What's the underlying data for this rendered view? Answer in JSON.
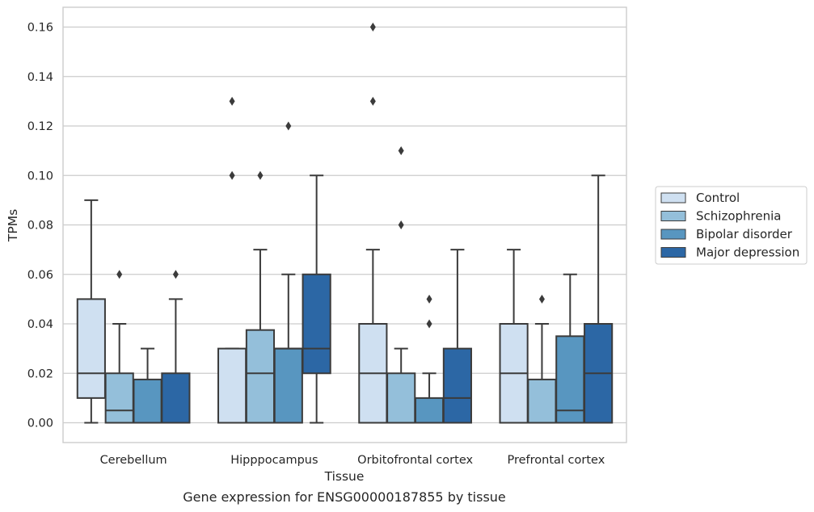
{
  "chart_data": {
    "type": "boxplot",
    "title": "",
    "caption": "Gene expression for ENSG00000187855 by tissue",
    "xlabel": "Tissue",
    "ylabel": "TPMs",
    "ylim": [
      -0.008,
      0.168
    ],
    "yticks": [
      0.0,
      0.02,
      0.04,
      0.06,
      0.08,
      0.1,
      0.12,
      0.14,
      0.16
    ],
    "ytick_labels": [
      "0.00",
      "0.02",
      "0.04",
      "0.06",
      "0.08",
      "0.10",
      "0.12",
      "0.14",
      "0.16"
    ],
    "grid": "horizontal",
    "legend_position": "right",
    "categories": [
      "Cerebellum",
      "Hipppocampus",
      "Orbitofrontal cortex",
      "Prefrontal cortex"
    ],
    "series": [
      {
        "name": "Control",
        "color": "#cfe0f1",
        "boxes": [
          {
            "whislo": 0.0,
            "q1": 0.01,
            "med": 0.02,
            "q3": 0.05,
            "whishi": 0.09,
            "fliers": []
          },
          {
            "whislo": 0.0,
            "q1": 0.0,
            "med": 0.0,
            "q3": 0.03,
            "whishi": 0.03,
            "fliers": [
              0.1,
              0.13
            ]
          },
          {
            "whislo": 0.0,
            "q1": 0.0,
            "med": 0.02,
            "q3": 0.04,
            "whishi": 0.07,
            "fliers": [
              0.13,
              0.16
            ]
          },
          {
            "whislo": 0.0,
            "q1": 0.0,
            "med": 0.02,
            "q3": 0.04,
            "whishi": 0.07,
            "fliers": []
          }
        ]
      },
      {
        "name": "Schizophrenia",
        "color": "#94bfda",
        "boxes": [
          {
            "whislo": 0.0,
            "q1": 0.0,
            "med": 0.005,
            "q3": 0.02,
            "whishi": 0.04,
            "fliers": [
              0.06
            ]
          },
          {
            "whislo": 0.0,
            "q1": 0.0,
            "med": 0.02,
            "q3": 0.0375,
            "whishi": 0.07,
            "fliers": [
              0.1
            ]
          },
          {
            "whislo": 0.0,
            "q1": 0.0,
            "med": 0.0,
            "q3": 0.02,
            "whishi": 0.03,
            "fliers": [
              0.08,
              0.11
            ]
          },
          {
            "whislo": 0.0,
            "q1": 0.0,
            "med": 0.0,
            "q3": 0.0175,
            "whishi": 0.04,
            "fliers": [
              0.05
            ]
          }
        ]
      },
      {
        "name": "Bipolar disorder",
        "color": "#5896c0",
        "boxes": [
          {
            "whislo": 0.0,
            "q1": 0.0,
            "med": 0.0,
            "q3": 0.0175,
            "whishi": 0.03,
            "fliers": []
          },
          {
            "whislo": 0.0,
            "q1": 0.0,
            "med": 0.03,
            "q3": 0.03,
            "whishi": 0.06,
            "fliers": [
              0.12
            ]
          },
          {
            "whislo": 0.0,
            "q1": 0.0,
            "med": 0.0,
            "q3": 0.01,
            "whishi": 0.02,
            "fliers": [
              0.04,
              0.05
            ]
          },
          {
            "whislo": 0.0,
            "q1": 0.0,
            "med": 0.005,
            "q3": 0.035,
            "whishi": 0.06,
            "fliers": []
          }
        ]
      },
      {
        "name": "Major depression",
        "color": "#2c67a5",
        "boxes": [
          {
            "whislo": 0.0,
            "q1": 0.0,
            "med": 0.0,
            "q3": 0.02,
            "whishi": 0.05,
            "fliers": [
              0.06
            ]
          },
          {
            "whislo": 0.0,
            "q1": 0.02,
            "med": 0.03,
            "q3": 0.06,
            "whishi": 0.1,
            "fliers": []
          },
          {
            "whislo": 0.0,
            "q1": 0.0,
            "med": 0.01,
            "q3": 0.03,
            "whishi": 0.07,
            "fliers": []
          },
          {
            "whislo": 0.0,
            "q1": 0.0,
            "med": 0.02,
            "q3": 0.04,
            "whishi": 0.1,
            "fliers": []
          }
        ]
      }
    ]
  }
}
